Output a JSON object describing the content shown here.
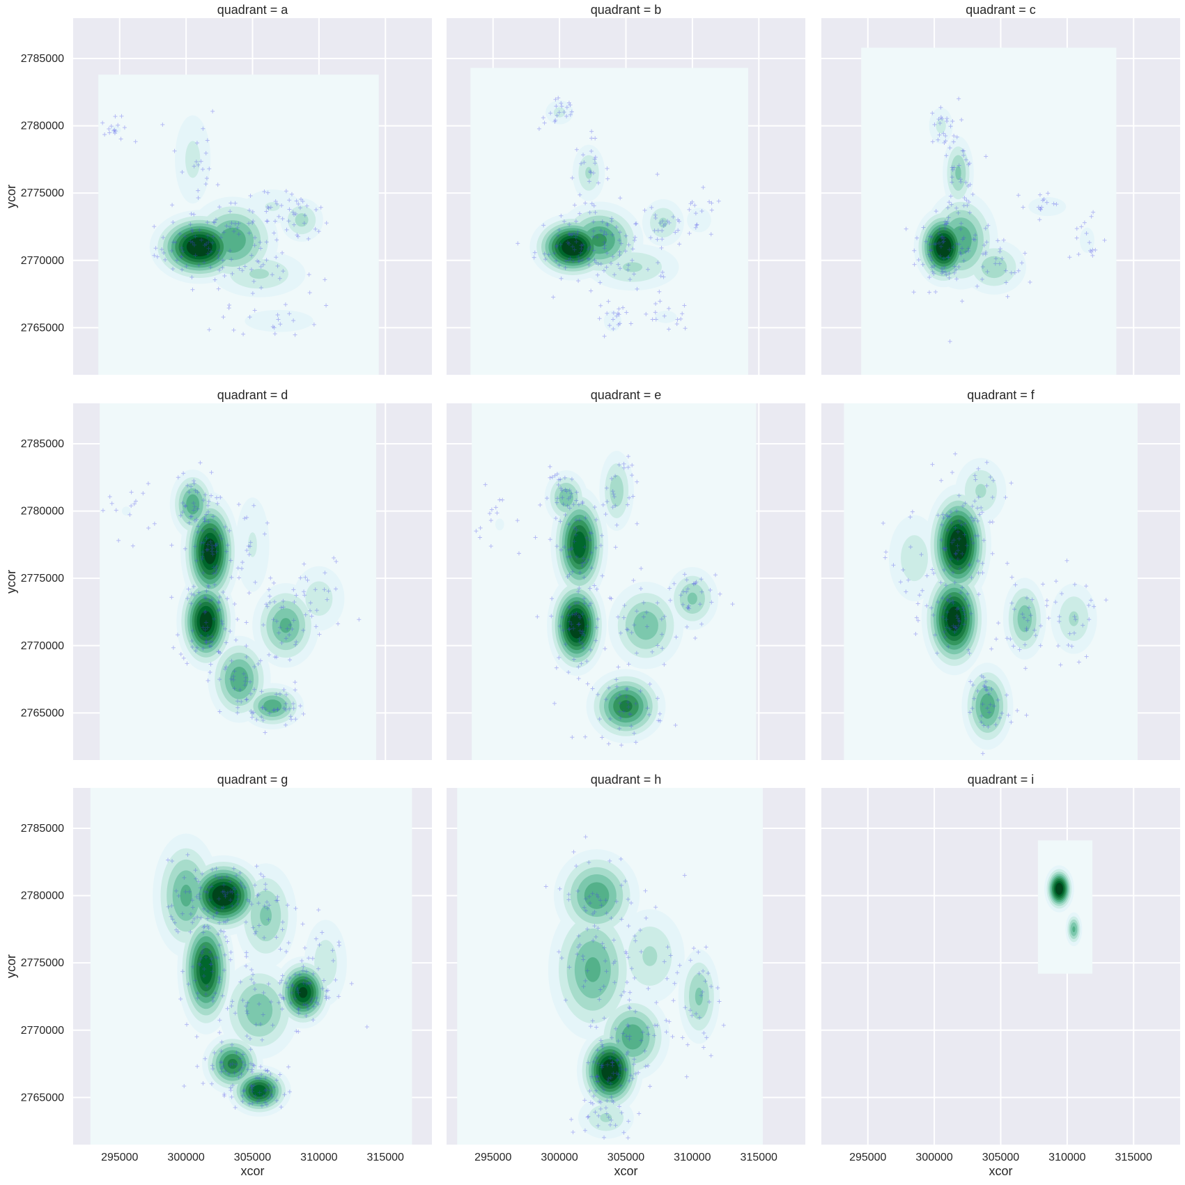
{
  "chart_data": {
    "type": "kde-facet-grid",
    "facet_variable": "quadrant",
    "xlabel": "xcor",
    "ylabel": "ycor",
    "xlim": [
      291500,
      318500
    ],
    "ylim": [
      2761500,
      2788000
    ],
    "xticks": [
      295000,
      300000,
      305000,
      310000,
      315000
    ],
    "yticks": [
      2765000,
      2770000,
      2775000,
      2780000,
      2785000
    ],
    "grid": true,
    "colors": {
      "panel_background": "#EAEAF2",
      "kde_floor": "#F0F9FA",
      "kde_levels": [
        "#E5F5F9",
        "#CCECE6",
        "#A7DCCB",
        "#7CC8AD",
        "#54B18A",
        "#34975F",
        "#1B7D44",
        "#00672C",
        "#00441B"
      ],
      "markers": "#4444E8"
    },
    "panels": [
      {
        "title": "quadrant = a",
        "kde_extent": {
          "x": [
            293400,
            314500
          ],
          "y": [
            2761500,
            2783800
          ]
        },
        "density_peaks": [
          {
            "x": 301000,
            "y": 2771000,
            "weight": 1.0,
            "sx": 1500,
            "sy": 1100
          },
          {
            "x": 303500,
            "y": 2771500,
            "weight": 0.55,
            "sx": 1600,
            "sy": 1500
          },
          {
            "x": 308700,
            "y": 2773000,
            "weight": 0.32,
            "sx": 900,
            "sy": 900
          },
          {
            "x": 300500,
            "y": 2777500,
            "weight": 0.22,
            "sx": 900,
            "sy": 2200
          },
          {
            "x": 306500,
            "y": 2774000,
            "weight": 0.2,
            "sx": 1500,
            "sy": 900
          },
          {
            "x": 307000,
            "y": 2765500,
            "weight": 0.16,
            "sx": 2200,
            "sy": 700
          },
          {
            "x": 305500,
            "y": 2769000,
            "weight": 0.3,
            "sx": 2000,
            "sy": 1000
          },
          {
            "x": 294700,
            "y": 2779700,
            "weight": 0.12,
            "sx": 500,
            "sy": 400
          }
        ]
      },
      {
        "title": "quadrant = b",
        "kde_extent": {
          "x": [
            293300,
            314200
          ],
          "y": [
            2761500,
            2784300
          ]
        },
        "density_peaks": [
          {
            "x": 301000,
            "y": 2771000,
            "weight": 1.0,
            "sx": 1300,
            "sy": 1000
          },
          {
            "x": 303000,
            "y": 2771500,
            "weight": 0.6,
            "sx": 1500,
            "sy": 1300
          },
          {
            "x": 302200,
            "y": 2776500,
            "weight": 0.3,
            "sx": 700,
            "sy": 1200
          },
          {
            "x": 300000,
            "y": 2781000,
            "weight": 0.22,
            "sx": 700,
            "sy": 600
          },
          {
            "x": 307800,
            "y": 2772800,
            "weight": 0.3,
            "sx": 900,
            "sy": 1000
          },
          {
            "x": 305500,
            "y": 2769500,
            "weight": 0.3,
            "sx": 2000,
            "sy": 1000
          },
          {
            "x": 304000,
            "y": 2765500,
            "weight": 0.15,
            "sx": 600,
            "sy": 700
          },
          {
            "x": 308000,
            "y": 2765800,
            "weight": 0.13,
            "sx": 900,
            "sy": 500
          },
          {
            "x": 310500,
            "y": 2773000,
            "weight": 0.14,
            "sx": 900,
            "sy": 900
          }
        ]
      },
      {
        "title": "quadrant = c",
        "kde_extent": {
          "x": [
            294500,
            313700
          ],
          "y": [
            2761500,
            2785800
          ]
        },
        "density_peaks": [
          {
            "x": 300700,
            "y": 2771000,
            "weight": 1.0,
            "sx": 900,
            "sy": 1200
          },
          {
            "x": 302000,
            "y": 2771500,
            "weight": 0.55,
            "sx": 1300,
            "sy": 1700
          },
          {
            "x": 301800,
            "y": 2776500,
            "weight": 0.4,
            "sx": 600,
            "sy": 1400
          },
          {
            "x": 300500,
            "y": 2780000,
            "weight": 0.22,
            "sx": 600,
            "sy": 900
          },
          {
            "x": 304500,
            "y": 2769500,
            "weight": 0.35,
            "sx": 1300,
            "sy": 1100
          },
          {
            "x": 308500,
            "y": 2774000,
            "weight": 0.12,
            "sx": 1800,
            "sy": 900
          },
          {
            "x": 311500,
            "y": 2771500,
            "weight": 0.12,
            "sx": 700,
            "sy": 1200
          }
        ]
      },
      {
        "title": "quadrant = d",
        "kde_extent": {
          "x": [
            293500,
            314300
          ],
          "y": [
            2761500,
            2788000
          ]
        },
        "density_peaks": [
          {
            "x": 301800,
            "y": 2777000,
            "weight": 0.95,
            "sx": 900,
            "sy": 1800
          },
          {
            "x": 301500,
            "y": 2771800,
            "weight": 0.95,
            "sx": 900,
            "sy": 1500
          },
          {
            "x": 300500,
            "y": 2780500,
            "weight": 0.55,
            "sx": 800,
            "sy": 1200
          },
          {
            "x": 304000,
            "y": 2767500,
            "weight": 0.55,
            "sx": 1100,
            "sy": 1500
          },
          {
            "x": 306500,
            "y": 2765500,
            "weight": 0.55,
            "sx": 1100,
            "sy": 800
          },
          {
            "x": 307500,
            "y": 2771500,
            "weight": 0.5,
            "sx": 1200,
            "sy": 1500
          },
          {
            "x": 310000,
            "y": 2773500,
            "weight": 0.25,
            "sx": 1200,
            "sy": 1500
          },
          {
            "x": 305000,
            "y": 2777500,
            "weight": 0.2,
            "sx": 900,
            "sy": 2500
          },
          {
            "x": 295500,
            "y": 2780000,
            "weight": 0.1,
            "sx": 900,
            "sy": 900
          }
        ]
      },
      {
        "title": "quadrant = e",
        "kde_extent": {
          "x": [
            293400,
            314800
          ],
          "y": [
            2761500,
            2788000
          ]
        },
        "density_peaks": [
          {
            "x": 301300,
            "y": 2771500,
            "weight": 1.0,
            "sx": 900,
            "sy": 1500
          },
          {
            "x": 301500,
            "y": 2777500,
            "weight": 0.85,
            "sx": 900,
            "sy": 1800
          },
          {
            "x": 300500,
            "y": 2781000,
            "weight": 0.45,
            "sx": 800,
            "sy": 1000
          },
          {
            "x": 305000,
            "y": 2765500,
            "weight": 0.7,
            "sx": 1300,
            "sy": 1200
          },
          {
            "x": 306500,
            "y": 2771500,
            "weight": 0.45,
            "sx": 1400,
            "sy": 1600
          },
          {
            "x": 310000,
            "y": 2773500,
            "weight": 0.4,
            "sx": 1000,
            "sy": 1200
          },
          {
            "x": 304300,
            "y": 2781500,
            "weight": 0.35,
            "sx": 700,
            "sy": 1600
          },
          {
            "x": 295500,
            "y": 2779000,
            "weight": 0.1,
            "sx": 900,
            "sy": 1200
          }
        ]
      },
      {
        "title": "quadrant = f",
        "kde_extent": {
          "x": [
            293200,
            315300
          ],
          "y": [
            2761500,
            2788000
          ]
        },
        "density_peaks": [
          {
            "x": 301800,
            "y": 2777500,
            "weight": 1.0,
            "sx": 1000,
            "sy": 1800
          },
          {
            "x": 301500,
            "y": 2772000,
            "weight": 0.95,
            "sx": 1000,
            "sy": 1700
          },
          {
            "x": 304000,
            "y": 2765500,
            "weight": 0.55,
            "sx": 900,
            "sy": 1500
          },
          {
            "x": 306800,
            "y": 2772000,
            "weight": 0.45,
            "sx": 800,
            "sy": 1500
          },
          {
            "x": 310500,
            "y": 2772000,
            "weight": 0.3,
            "sx": 1000,
            "sy": 1500
          },
          {
            "x": 303500,
            "y": 2781500,
            "weight": 0.3,
            "sx": 1100,
            "sy": 1400
          },
          {
            "x": 298500,
            "y": 2776500,
            "weight": 0.25,
            "sx": 1200,
            "sy": 2000
          }
        ]
      },
      {
        "title": "quadrant = g",
        "kde_extent": {
          "x": [
            292800,
            317000
          ],
          "y": [
            2761500,
            2788000
          ]
        },
        "density_peaks": [
          {
            "x": 302800,
            "y": 2780000,
            "weight": 1.0,
            "sx": 1300,
            "sy": 1200
          },
          {
            "x": 301500,
            "y": 2774500,
            "weight": 0.85,
            "sx": 900,
            "sy": 2000
          },
          {
            "x": 305500,
            "y": 2765500,
            "weight": 0.85,
            "sx": 1000,
            "sy": 800
          },
          {
            "x": 303500,
            "y": 2767500,
            "weight": 0.7,
            "sx": 1000,
            "sy": 1000
          },
          {
            "x": 308800,
            "y": 2772800,
            "weight": 0.9,
            "sx": 900,
            "sy": 1100
          },
          {
            "x": 300000,
            "y": 2780000,
            "weight": 0.5,
            "sx": 1200,
            "sy": 2200
          },
          {
            "x": 306000,
            "y": 2778500,
            "weight": 0.4,
            "sx": 1200,
            "sy": 2000
          },
          {
            "x": 305500,
            "y": 2771500,
            "weight": 0.45,
            "sx": 1500,
            "sy": 1800
          },
          {
            "x": 310500,
            "y": 2775000,
            "weight": 0.25,
            "sx": 1000,
            "sy": 2000
          }
        ]
      },
      {
        "title": "quadrant = h",
        "kde_extent": {
          "x": [
            292300,
            315300
          ],
          "y": [
            2761500,
            2788000
          ]
        },
        "density_peaks": [
          {
            "x": 303800,
            "y": 2767000,
            "weight": 1.0,
            "sx": 1000,
            "sy": 1300
          },
          {
            "x": 302800,
            "y": 2780000,
            "weight": 0.55,
            "sx": 1500,
            "sy": 1600
          },
          {
            "x": 302500,
            "y": 2774500,
            "weight": 0.5,
            "sx": 1600,
            "sy": 2500
          },
          {
            "x": 305500,
            "y": 2769500,
            "weight": 0.55,
            "sx": 1300,
            "sy": 1500
          },
          {
            "x": 310500,
            "y": 2772500,
            "weight": 0.4,
            "sx": 800,
            "sy": 1800
          },
          {
            "x": 306800,
            "y": 2775500,
            "weight": 0.3,
            "sx": 1500,
            "sy": 2000
          },
          {
            "x": 303500,
            "y": 2763500,
            "weight": 0.3,
            "sx": 1200,
            "sy": 900
          }
        ]
      },
      {
        "title": "quadrant = i",
        "kde_extent": {
          "x": [
            307800,
            311900
          ],
          "y": [
            2774200,
            2784100
          ]
        },
        "density_peaks": [
          {
            "x": 309400,
            "y": 2780500,
            "weight": 1.0,
            "sx": 450,
            "sy": 700
          },
          {
            "x": 310500,
            "y": 2777500,
            "weight": 0.5,
            "sx": 300,
            "sy": 600
          }
        ]
      }
    ]
  }
}
